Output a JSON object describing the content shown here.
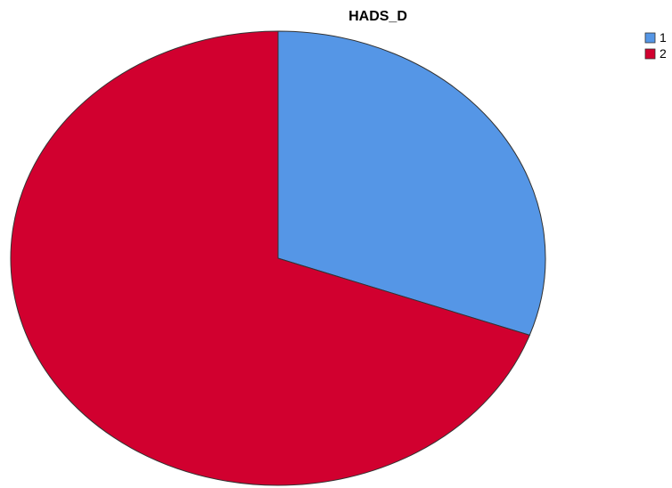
{
  "chart_data": {
    "type": "pie",
    "title": "HADS_D",
    "categories": [
      "1",
      "2"
    ],
    "values": [
      30.5,
      69.5
    ],
    "colors": [
      "#5596e6",
      "#d1002f"
    ],
    "start_angle_deg": 0,
    "direction": "clockwise",
    "legend": {
      "placement": "top-right",
      "entries": [
        "1",
        "2"
      ]
    }
  }
}
